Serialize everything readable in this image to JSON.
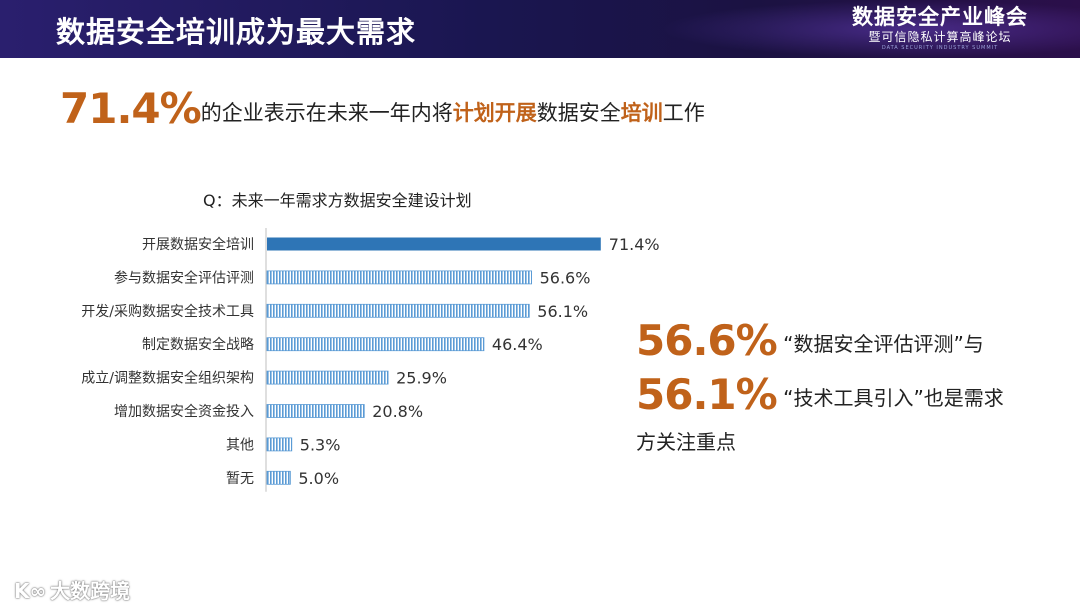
{
  "header": {
    "title": "数据安全培训成为最大需求",
    "brand_main": "数据安全产业峰会",
    "brand_sub": "暨可信隐私计算高峰论坛",
    "brand_en": "DATA SECURITY INDUSTRY SUMMIT"
  },
  "headline": {
    "percent": "71.4%",
    "text1": "的企业表示在未来一年内将",
    "em1": "计划开展",
    "text2": "数据安全",
    "em2": "培训",
    "text3": "工作"
  },
  "side": {
    "pct1": "56.6%",
    "text1": "“数据安全评估评测”与",
    "pct2": "56.1%",
    "text2": "“技术工具引入”也是需求",
    "text3": "方关注重点"
  },
  "watermark": {
    "logo": "K∞",
    "text": "大数跨境"
  },
  "colors": {
    "accent": "#c0621a",
    "bar_solid": "#2e75b6",
    "bar_hatch": "#5b9bd5"
  },
  "chart_data": {
    "type": "bar",
    "orientation": "horizontal",
    "title": "Q：未来一年需求方数据安全建设计划",
    "categories": [
      "开展数据安全培训",
      "参与数据安全评估评测",
      "开发/采购数据安全技术工具",
      "制定数据安全战略",
      "成立/调整数据安全组织架构",
      "增加数据安全资金投入",
      "其他",
      "暂无"
    ],
    "values": [
      71.4,
      56.6,
      56.1,
      46.4,
      25.9,
      20.8,
      5.3,
      5.0
    ],
    "value_labels": [
      "71.4%",
      "56.6%",
      "56.1%",
      "46.4%",
      "25.9%",
      "20.8%",
      "5.3%",
      "5.0%"
    ],
    "unit": "%",
    "xlim": [
      0,
      80
    ],
    "highlight_index": 0,
    "grid": false,
    "legend": "none"
  }
}
